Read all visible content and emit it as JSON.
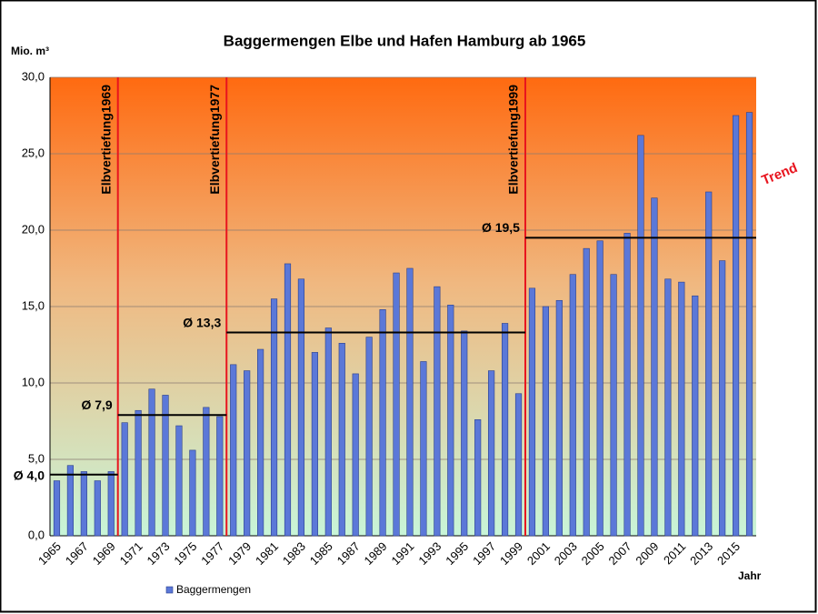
{
  "chart_data": {
    "type": "bar",
    "title": "Baggermengen Elbe und Hafen Hamburg ab 1965",
    "y_label": "Mio. m³",
    "x_label": "Jahr",
    "annotation": "Trend",
    "categories": [
      "1965",
      null,
      "1967",
      null,
      "1969",
      null,
      "1971",
      null,
      "1973",
      null,
      "1975",
      null,
      "1977",
      null,
      "1979",
      null,
      "1981",
      null,
      "1983",
      null,
      "1985",
      null,
      "1987",
      null,
      "1989",
      null,
      "1991",
      null,
      "1993",
      null,
      "1995",
      null,
      "1997",
      null,
      "1999",
      null,
      "2001",
      null,
      "2003",
      null,
      "2005",
      null,
      "2007",
      null,
      "2009",
      null,
      "2011",
      null,
      "2013",
      null,
      "2015",
      null
    ],
    "series": [
      {
        "name": "Baggermengen",
        "color": "#5b78d8",
        "values": [
          3.6,
          4.6,
          4.2,
          3.6,
          4.2,
          7.4,
          8.2,
          9.6,
          9.2,
          7.2,
          5.6,
          8.4,
          7.8,
          11.2,
          10.8,
          12.2,
          15.5,
          17.8,
          16.8,
          12.0,
          13.6,
          12.6,
          10.6,
          13.0,
          14.8,
          17.2,
          17.5,
          11.4,
          16.3,
          15.1,
          13.4,
          7.6,
          10.8,
          13.9,
          9.3,
          16.2,
          15.0,
          15.4,
          17.1,
          18.8,
          19.3,
          17.1,
          19.8,
          26.2,
          22.1,
          16.8,
          16.6,
          15.7,
          22.5,
          18.0,
          27.5,
          27.7
        ]
      }
    ],
    "ylim": [
      0,
      30
    ],
    "yticks": [
      {
        "value": 0,
        "label": "0,0"
      },
      {
        "value": 5,
        "label": "5,0"
      },
      {
        "value": 10,
        "label": "10,0"
      },
      {
        "value": 15,
        "label": "15,0"
      },
      {
        "value": 20,
        "label": "20,0"
      },
      {
        "value": 25,
        "label": "25,0"
      },
      {
        "value": 30,
        "label": "30,0"
      }
    ],
    "grid": true,
    "markers": [
      {
        "label": "Elbvertiefung1969",
        "year": 1969,
        "color": "#e8141e"
      },
      {
        "label": "Elbvertiefung1977",
        "year": 1977,
        "color": "#e8141e"
      },
      {
        "label": "Elbvertiefung1999",
        "year": 1999,
        "color": "#e8141e"
      }
    ],
    "averages": [
      {
        "value": 4.0,
        "label": "Ø 4,0"
      },
      {
        "value": 7.9,
        "label": "Ø 7,9"
      },
      {
        "value": 13.3,
        "label": "Ø 13,3"
      },
      {
        "value": 19.5,
        "label": "Ø 19,5"
      }
    ],
    "legend": "bottom-left"
  }
}
